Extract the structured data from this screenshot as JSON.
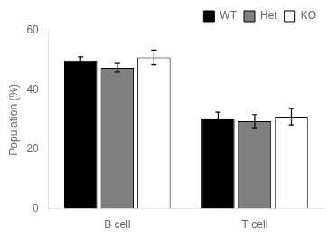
{
  "chart_data": {
    "type": "bar",
    "categories": [
      "B cell",
      "T cell"
    ],
    "series": [
      {
        "name": "WT",
        "color": "#000000",
        "values": [
          50.0,
          30.5
        ],
        "errors": [
          1.2,
          2.0
        ]
      },
      {
        "name": "Het",
        "color": "#808080",
        "values": [
          47.5,
          29.5
        ],
        "errors": [
          1.5,
          2.2
        ]
      },
      {
        "name": "KO",
        "color": "#ffffff",
        "values": [
          51.0,
          31.0
        ],
        "errors": [
          2.5,
          2.8
        ]
      }
    ],
    "ylabel": "Population (%)",
    "ylim": [
      0,
      60
    ],
    "yticks": [
      0,
      20,
      40,
      60
    ],
    "grid": false,
    "legend": "upper right"
  }
}
